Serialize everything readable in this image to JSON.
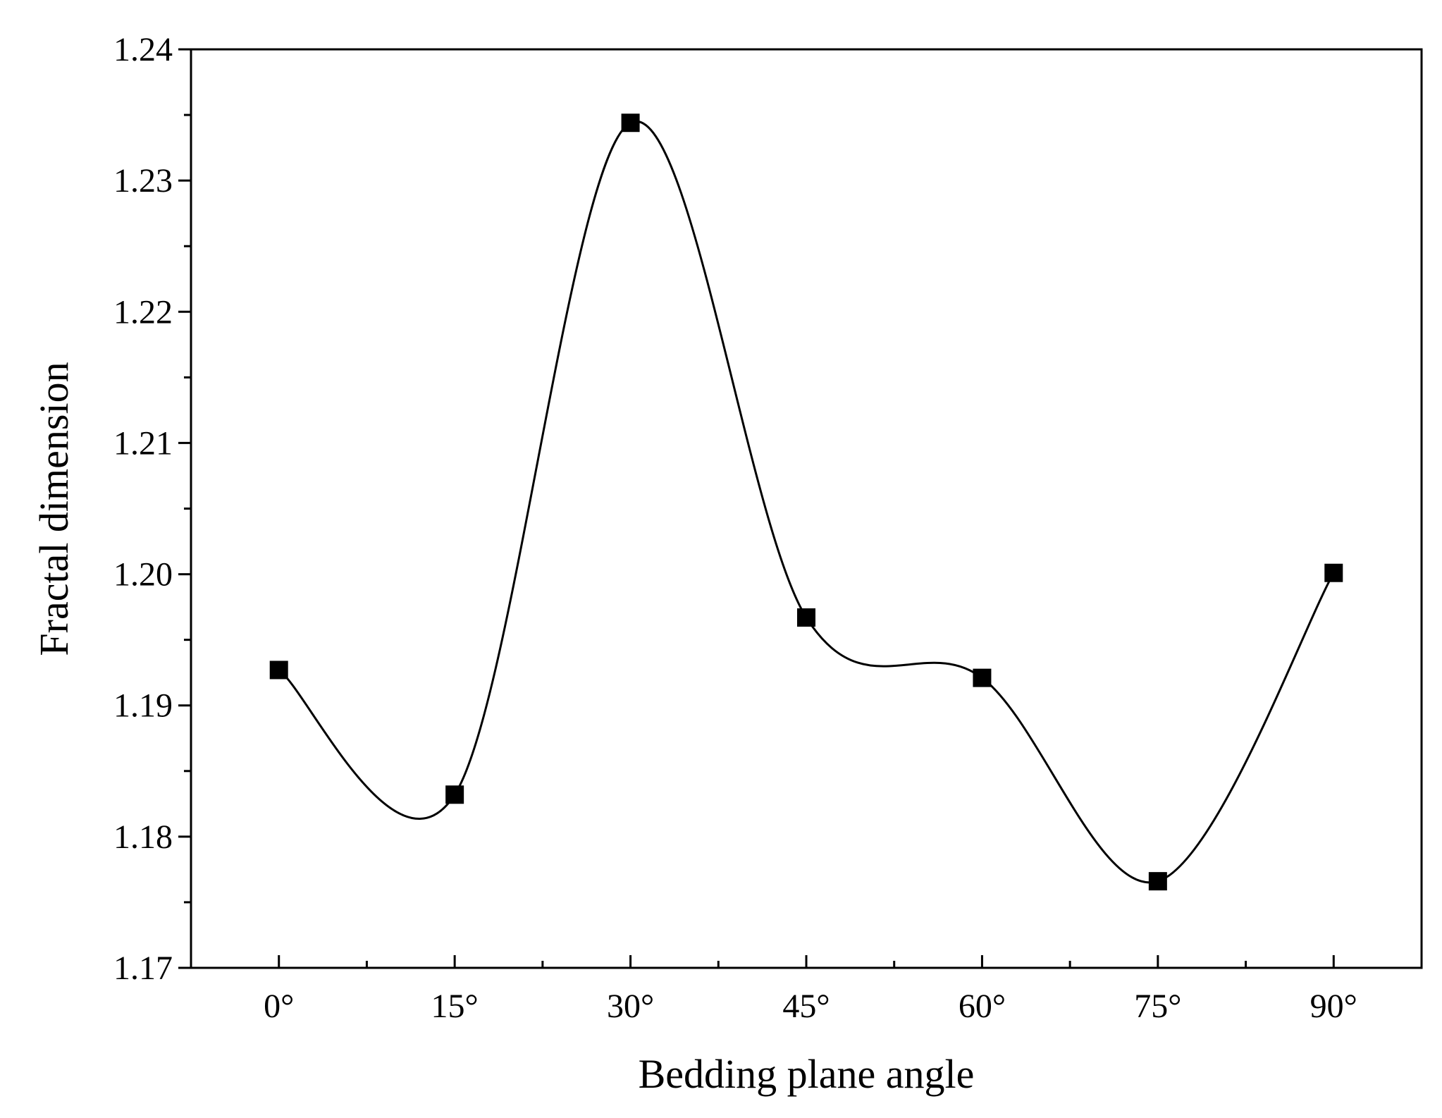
{
  "chart_data": {
    "type": "line",
    "title": "",
    "xlabel": "Bedding plane angle",
    "ylabel": "Fractal dimension",
    "categories": [
      "0°",
      "15°",
      "30°",
      "45°",
      "60°",
      "75°",
      "90°"
    ],
    "x": [
      0,
      15,
      30,
      45,
      60,
      75,
      90
    ],
    "series": [
      {
        "name": "",
        "values": [
          1.1927,
          1.1832,
          1.2344,
          1.1967,
          1.1921,
          1.1766,
          1.2001
        ],
        "marker": "square",
        "line": "smooth spline",
        "color": "#000000"
      }
    ],
    "xlim": [
      -7.5,
      97.5
    ],
    "ylim": [
      1.17,
      1.24
    ],
    "yticks": [
      "1.17",
      "1.18",
      "1.19",
      "1.20",
      "1.21",
      "1.22",
      "1.23",
      "1.24"
    ],
    "grid": false,
    "legend": "none"
  }
}
